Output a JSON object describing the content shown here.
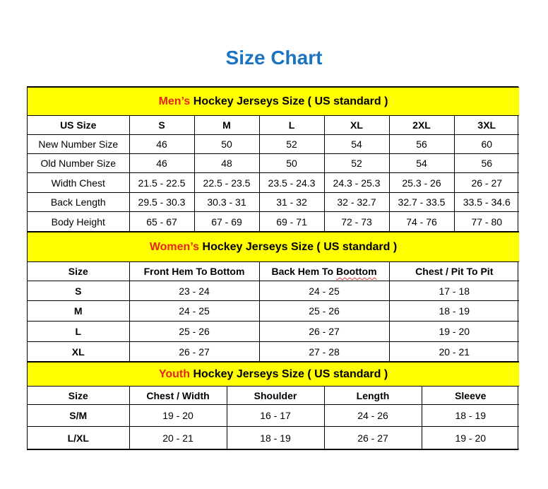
{
  "title": "Size Chart",
  "colors": {
    "title": "#1a74c2",
    "section_bg": "#ffff00",
    "highlight": "#e8231d"
  },
  "men": {
    "heading_highlight": "Men’s",
    "heading_rest": " Hockey Jerseys Size ( US standard )",
    "columns": [
      "US Size",
      "S",
      "M",
      "L",
      "XL",
      "2XL",
      "3XL"
    ],
    "rows": [
      [
        "New Number Size",
        "46",
        "50",
        "52",
        "54",
        "56",
        "60"
      ],
      [
        "Old Number Size",
        "46",
        "48",
        "50",
        "52",
        "54",
        "56"
      ],
      [
        "Width Chest",
        "21.5 - 22.5",
        "22.5 - 23.5",
        "23.5 - 24.3",
        "24.3 - 25.3",
        "25.3 - 26",
        "26 - 27"
      ],
      [
        "Back Length",
        "29.5 - 30.3",
        "30.3 - 31",
        "31 - 32",
        "32 - 32.7",
        "32.7 - 33.5",
        "33.5 - 34.6"
      ],
      [
        "Body Height",
        "65 - 67",
        "67 - 69",
        "69 - 71",
        "72 - 73",
        "74 - 76",
        "77 - 80"
      ]
    ]
  },
  "women": {
    "heading_highlight": "Women’s",
    "heading_rest": " Hockey Jerseys Size ( US standard )",
    "columns": [
      "Size",
      "Front Hem To Bottom",
      "Back Hem To Boottom",
      "Chest / Pit To Pit"
    ],
    "rows": [
      [
        "S",
        "23 - 24",
        "24 - 25",
        "17 - 18"
      ],
      [
        "M",
        "24 - 25",
        "25 - 26",
        "18 - 19"
      ],
      [
        "L",
        "25 - 26",
        "26 - 27",
        "19 - 20"
      ],
      [
        "XL",
        "26 - 27",
        "27 - 28",
        "20 - 21"
      ]
    ]
  },
  "youth": {
    "heading_highlight": "Youth",
    "heading_rest": " Hockey Jerseys Size ( US standard )",
    "columns": [
      "Size",
      "Chest / Width",
      "Shoulder",
      "Length",
      "Sleeve"
    ],
    "rows": [
      [
        "S/M",
        "19 - 20",
        "16 - 17",
        "24 - 26",
        "18 - 19"
      ],
      [
        "L/XL",
        "20 - 21",
        "18 - 19",
        "26 - 27",
        "19 - 20"
      ]
    ]
  }
}
